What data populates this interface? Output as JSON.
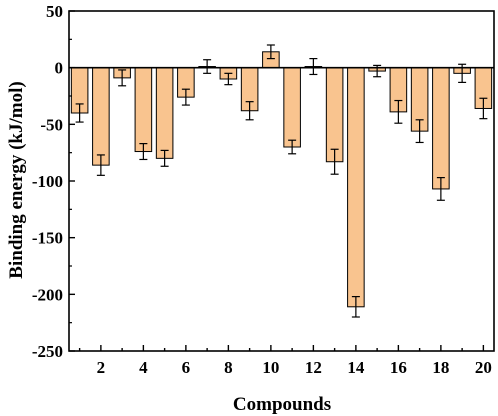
{
  "chart_data": {
    "type": "bar",
    "title": "",
    "xlabel": "Compounds",
    "ylabel": "Binding energy (kJ/mol)",
    "ylim": [
      -250,
      50
    ],
    "xlim": [
      0.5,
      20.5
    ],
    "yticks": [
      -250,
      -200,
      -150,
      -100,
      -50,
      0,
      50
    ],
    "xticks": [
      2,
      4,
      6,
      8,
      10,
      12,
      14,
      16,
      18,
      20
    ],
    "grid": false,
    "legend": "none",
    "bar_color": "#F9C48F",
    "bar_edge_color": "#000000",
    "categories": [
      1,
      2,
      3,
      4,
      5,
      6,
      7,
      8,
      9,
      10,
      11,
      12,
      13,
      14,
      15,
      16,
      17,
      18,
      19,
      20
    ],
    "values": [
      -40,
      -86,
      -9,
      -74,
      -80,
      -26,
      1,
      -10,
      -38,
      14,
      -70,
      1,
      -83,
      -211,
      -3,
      -39,
      -56,
      -107,
      -5,
      -36
    ],
    "errors": [
      8,
      9,
      7,
      7,
      7,
      7,
      6,
      5,
      8,
      6,
      6,
      7,
      11,
      9,
      5,
      10,
      10,
      10,
      8,
      9
    ]
  }
}
